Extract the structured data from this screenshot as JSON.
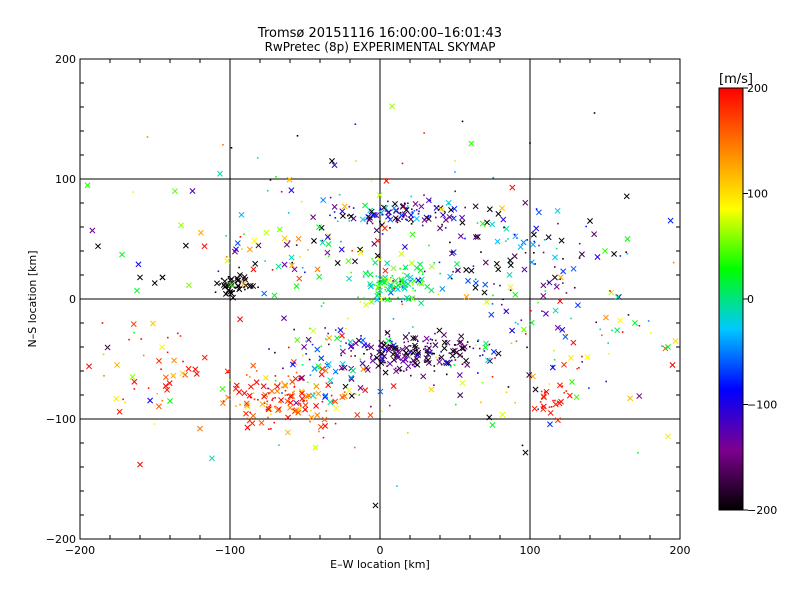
{
  "chart_data": {
    "type": "scatter",
    "title": "Tromsø 20151116 16:00:00–16:01:43",
    "subtitle": "RwPretec (8p) EXPERIMENTAL SKYMAP",
    "xlabel": "E–W location [km]",
    "ylabel": "N–S location [km]",
    "xlim": [
      -200,
      200
    ],
    "ylim": [
      -200,
      200
    ],
    "xticks": [
      -200,
      -100,
      0,
      100,
      200
    ],
    "yticks": [
      -200,
      -100,
      0,
      100,
      200
    ],
    "xtick_labels": [
      "−200",
      "−100",
      "0",
      "100",
      "200"
    ],
    "ytick_labels": [
      "−200",
      "−100",
      "0",
      "100",
      "200"
    ],
    "grid_lines": [
      -100,
      0,
      100
    ],
    "colorbar": {
      "label": "[m/s]",
      "range": [
        -200,
        200
      ],
      "ticks": [
        200,
        100,
        0,
        -100,
        -200
      ],
      "tick_labels": [
        "200",
        "100",
        "0",
        "−100",
        "−200"
      ],
      "colormap": [
        "#000000",
        "#7d008f",
        "#0000ff",
        "#00c8ff",
        "#00ff00",
        "#ffff00",
        "#ff8000",
        "#ff0000"
      ]
    },
    "markers": [
      "dot",
      "x"
    ],
    "clusters": [
      {
        "name": "A",
        "x": 25,
        "y": -45,
        "sx": 22,
        "sy": 9,
        "n": 190,
        "vmean": -170,
        "vsd": 40
      },
      {
        "name": "B",
        "x": 12,
        "y": 72,
        "sx": 22,
        "sy": 6,
        "n": 110,
        "vmean": -130,
        "vsd": 70
      },
      {
        "name": "C",
        "x": 10,
        "y": 12,
        "sx": 12,
        "sy": 9,
        "n": 110,
        "vmean": 15,
        "vsd": 40
      },
      {
        "name": "D",
        "x": -97,
        "y": 12,
        "sx": 6,
        "sy": 5,
        "n": 50,
        "vmean": -200,
        "vsd": 5
      },
      {
        "name": "E",
        "x": -60,
        "y": -85,
        "sx": 22,
        "sy": 14,
        "n": 150,
        "vmean": 175,
        "vsd": 40
      },
      {
        "name": "F",
        "x": -35,
        "y": -55,
        "sx": 15,
        "sy": 18,
        "n": 70,
        "vmean": -40,
        "vsd": 90
      },
      {
        "name": "G",
        "x": 90,
        "y": 35,
        "sx": 35,
        "sy": 20,
        "n": 100,
        "vmean": -140,
        "vsd": 80
      },
      {
        "name": "H",
        "x": -150,
        "y": -55,
        "sx": 25,
        "sy": 20,
        "n": 40,
        "vmean": 170,
        "vsd": 50
      },
      {
        "name": "I",
        "x": 115,
        "y": -85,
        "sx": 5,
        "sy": 7,
        "n": 25,
        "vmean": 195,
        "vsd": 8
      },
      {
        "name": "J",
        "x": 120,
        "y": -30,
        "sx": 50,
        "sy": 35,
        "n": 90,
        "vmean": 20,
        "vsd": 130
      },
      {
        "name": "K",
        "x": -50,
        "y": 45,
        "sx": 45,
        "sy": 30,
        "n": 90,
        "vmean": -20,
        "vsd": 130
      },
      {
        "name": "L",
        "x": 0,
        "y": 0,
        "sx": 110,
        "sy": 85,
        "n": 130,
        "vmean": 0,
        "vsd": 140
      }
    ],
    "points": [
      {
        "x": -172,
        "y": 37,
        "v": 20,
        "m": "x"
      },
      {
        "x": -188,
        "y": 44,
        "v": -200,
        "m": "x"
      },
      {
        "x": -160,
        "y": 18,
        "v": -200,
        "m": "x"
      },
      {
        "x": -145,
        "y": 18,
        "v": -200,
        "m": "x"
      },
      {
        "x": -145,
        "y": 18,
        "v": -200,
        "m": "x"
      },
      {
        "x": -162,
        "y": 7,
        "v": 20,
        "m": "x"
      },
      {
        "x": -165,
        "y": -65,
        "v": 60,
        "m": "x"
      },
      {
        "x": -160,
        "y": -138,
        "v": 200,
        "m": "x"
      },
      {
        "x": -140,
        "y": -85,
        "v": 30,
        "m": "x"
      },
      {
        "x": -155,
        "y": 135,
        "v": 140,
        "m": "dot"
      },
      {
        "x": -99,
        "y": 126,
        "v": -200,
        "m": "dot"
      },
      {
        "x": -55,
        "y": 136,
        "v": -200,
        "m": "dot"
      },
      {
        "x": 55,
        "y": 148,
        "v": -200,
        "m": "dot"
      },
      {
        "x": 143,
        "y": 155,
        "v": -200,
        "m": "dot"
      },
      {
        "x": -32,
        "y": 115,
        "v": -200,
        "m": "x"
      },
      {
        "x": 15,
        "y": 113,
        "v": 200,
        "m": "dot"
      },
      {
        "x": -3,
        "y": -172,
        "v": -200,
        "m": "x"
      },
      {
        "x": 97,
        "y": -128,
        "v": -200,
        "m": "x"
      },
      {
        "x": 95,
        "y": -122,
        "v": -200,
        "m": "dot"
      },
      {
        "x": 192,
        "y": -40,
        "v": 20,
        "m": "x"
      },
      {
        "x": 197,
        "y": -35,
        "v": 100,
        "m": "x"
      },
      {
        "x": 170,
        "y": -20,
        "v": 20,
        "m": "x"
      },
      {
        "x": 160,
        "y": -18,
        "v": 90,
        "m": "x"
      },
      {
        "x": 195,
        "y": -55,
        "v": 200,
        "m": "x"
      },
      {
        "x": 150,
        "y": 40,
        "v": 40,
        "m": "x"
      },
      {
        "x": 165,
        "y": 50,
        "v": 30,
        "m": "x"
      },
      {
        "x": -117,
        "y": 44,
        "v": 200,
        "m": "x"
      },
      {
        "x": -125,
        "y": 90,
        "v": -120,
        "m": "x"
      },
      {
        "x": 75,
        "y": -105,
        "v": 20,
        "m": "x"
      },
      {
        "x": 55,
        "y": -70,
        "v": 80,
        "m": "x"
      },
      {
        "x": -105,
        "y": -75,
        "v": 40,
        "m": "x"
      },
      {
        "x": -120,
        "y": -108,
        "v": 150,
        "m": "x"
      },
      {
        "x": -185,
        "y": -20,
        "v": 200,
        "m": "dot"
      },
      {
        "x": 140,
        "y": 65,
        "v": -200,
        "m": "x"
      },
      {
        "x": 145,
        "y": 35,
        "v": -100,
        "m": "x"
      },
      {
        "x": 100,
        "y": 130,
        "v": -200,
        "m": "dot"
      }
    ]
  }
}
